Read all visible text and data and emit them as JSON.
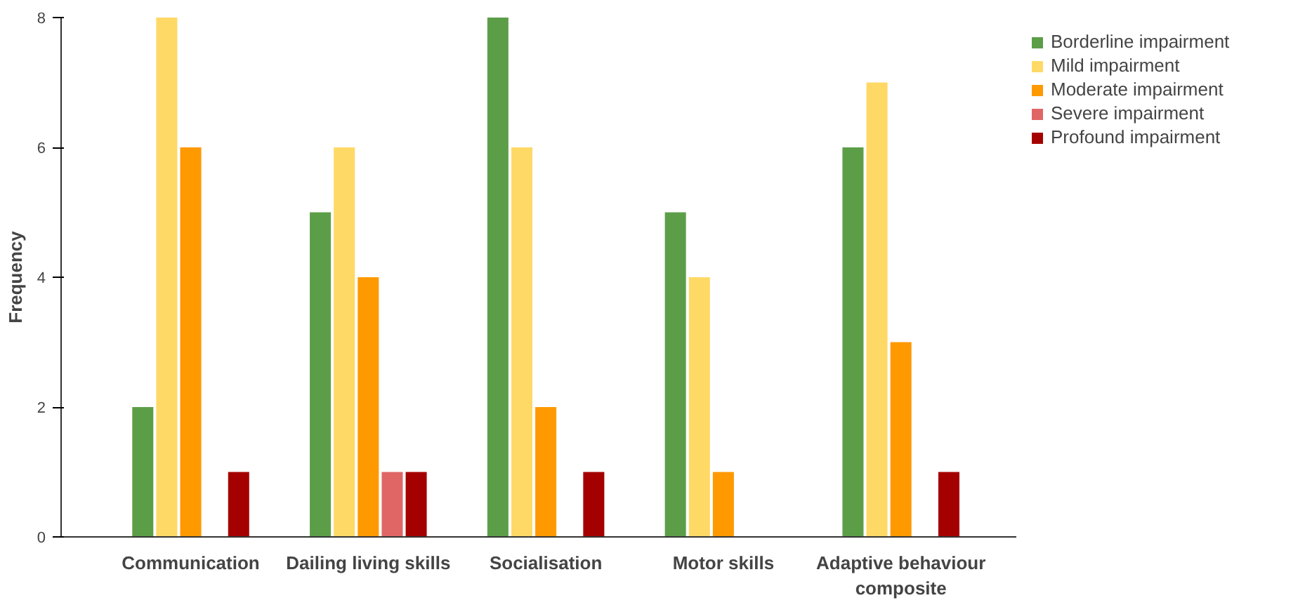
{
  "chart_data": {
    "type": "bar",
    "ylabel": "Frequency",
    "categories": [
      "Communication",
      "Dailing living skills",
      "Socialisation",
      "Motor skills",
      "Adaptive behaviour composite"
    ],
    "series": [
      {
        "name": "Borderline impairment",
        "color": "#5c9e48",
        "values": [
          2,
          5,
          8,
          5,
          6
        ]
      },
      {
        "name": "Mild impairment",
        "color": "#ffd966",
        "values": [
          8,
          6,
          6,
          4,
          7
        ]
      },
      {
        "name": "Moderate impairment",
        "color": "#ff9900",
        "values": [
          6,
          4,
          2,
          1,
          3
        ]
      },
      {
        "name": "Severe impairment",
        "color": "#e06666",
        "values": [
          null,
          1,
          null,
          null,
          null
        ]
      },
      {
        "name": "Profound impairment",
        "color": "#a50000",
        "values": [
          1,
          1,
          1,
          null,
          1
        ]
      }
    ],
    "ylim": [
      0,
      8
    ],
    "yticks": [
      0,
      2,
      4,
      6,
      8
    ],
    "grid": false,
    "legend": "top right"
  }
}
